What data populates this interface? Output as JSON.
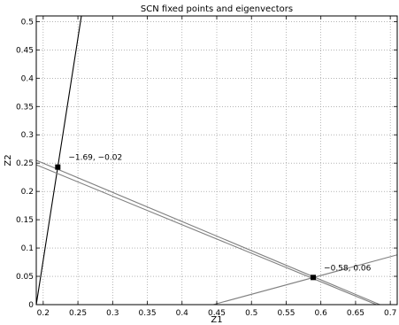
{
  "chart_data": {
    "type": "line",
    "title": "SCN fixed points and eigenvectors",
    "xlabel": "Z1",
    "ylabel": "Z2",
    "xlim": [
      0.19,
      0.71
    ],
    "ylim": [
      0,
      0.51
    ],
    "grid": true,
    "xticks": [
      0.2,
      0.25,
      0.3,
      0.35,
      0.4,
      0.45,
      0.5,
      0.55,
      0.6,
      0.65,
      0.7
    ],
    "yticks": [
      0,
      0.05,
      0.1,
      0.15,
      0.2,
      0.25,
      0.3,
      0.35,
      0.4,
      0.45,
      0.5
    ],
    "series": [
      {
        "color": "#000000",
        "x": [
          0.19,
          0.255
        ],
        "y": [
          0.0,
          0.51
        ]
      },
      {
        "color": "#808080",
        "x": [
          0.19,
          0.685
        ],
        "y": [
          0.255,
          0.0
        ]
      },
      {
        "color": "#808080",
        "x": [
          0.19,
          0.68
        ],
        "y": [
          0.247,
          0.0
        ]
      },
      {
        "color": "#808080",
        "x": [
          0.445,
          0.71
        ],
        "y": [
          0.0,
          0.088
        ]
      }
    ],
    "points": [
      {
        "x": 0.221,
        "y": 0.243,
        "label": "−1.69, −0.02"
      },
      {
        "x": 0.589,
        "y": 0.048,
        "label": "−0.58, 0.06"
      }
    ]
  }
}
